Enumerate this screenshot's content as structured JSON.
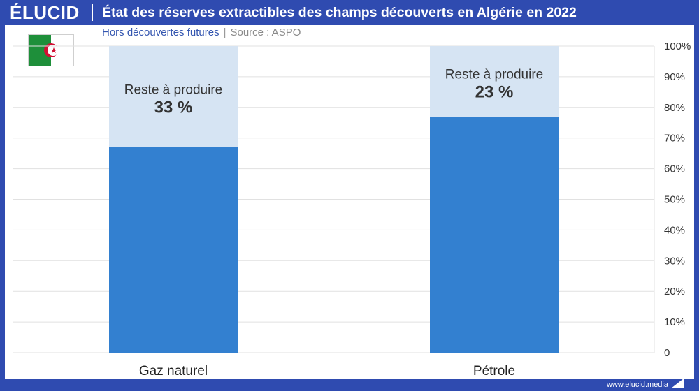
{
  "brand": {
    "logo": "ÉLUCID",
    "url": "www.elucid.media"
  },
  "header": {
    "title": "État des réserves extractibles des champs découverts en Algérie en 2022"
  },
  "subtitle": {
    "text": "Hors découvertes futures",
    "source": "Source : ASPO"
  },
  "flag": {
    "country": "Algeria",
    "colors": {
      "green": "#1e8f3a",
      "white": "#ffffff",
      "red": "#d21034"
    }
  },
  "colors": {
    "frame": "#2f4bb0",
    "produced": "#3380d0",
    "remaining": "#d6e4f3",
    "grid": "#e1e1e1",
    "text": "#333333"
  },
  "chart_data": {
    "type": "bar",
    "stacked": true,
    "categories": [
      "Gaz naturel",
      "Pétrole"
    ],
    "series": [
      {
        "values": [
          67,
          77
        ],
        "color": "#3380d0"
      },
      {
        "name": "Reste à produire",
        "values": [
          33,
          23
        ],
        "color": "#d6e4f3"
      }
    ],
    "data_labels": [
      {
        "title": "Reste à produire",
        "value": "33 %"
      },
      {
        "title": "Reste à produire",
        "value": "23 %"
      }
    ],
    "yticks": [
      "0",
      "10%",
      "20%",
      "30%",
      "40%",
      "50%",
      "60%",
      "70%",
      "80%",
      "90%",
      "100%"
    ],
    "ylim": [
      0,
      100
    ],
    "grid": true,
    "yaxis_position": "right"
  }
}
